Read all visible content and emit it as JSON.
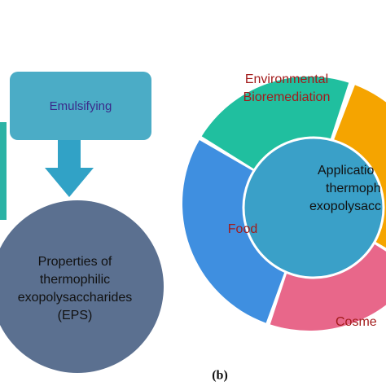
{
  "left": {
    "box": "Emulsifying",
    "center": [
      "Properties of",
      "thermophilic",
      "exopolysaccharides",
      "(EPS)"
    ]
  },
  "right": {
    "segments": [
      "Environmental",
      "Bioremediation",
      "Food",
      "Cosme"
    ],
    "center": [
      "Applicatio",
      "thermoph",
      "exopolysacc"
    ]
  },
  "caption": "(b)"
}
